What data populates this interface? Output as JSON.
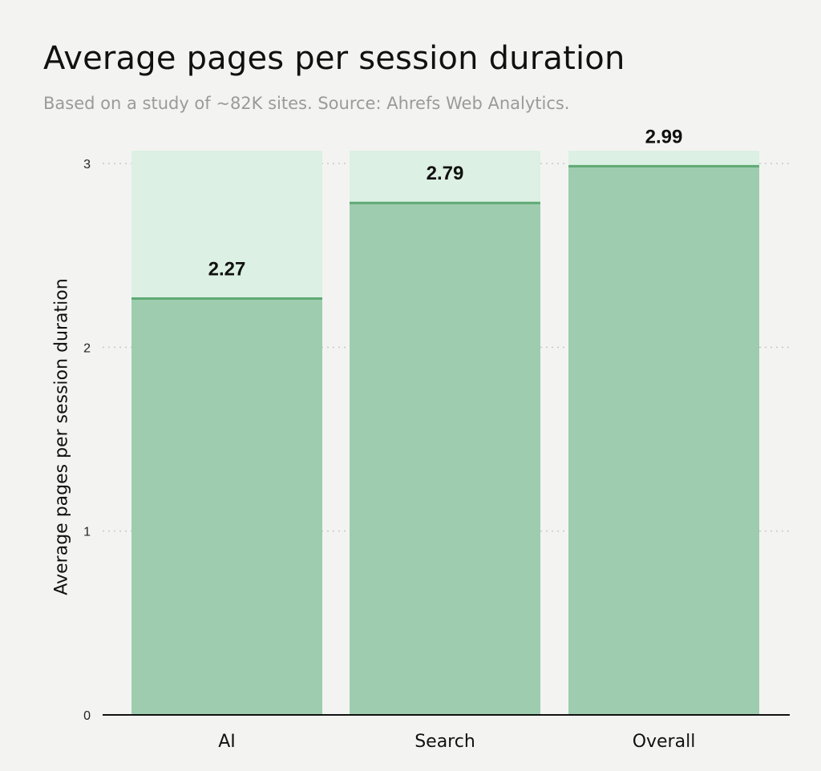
{
  "chart_data": {
    "type": "bar",
    "title": "Average pages per session duration",
    "subtitle": "Based on a study of ~82K sites. Source: Ahrefs Web Analytics.",
    "xlabel": "",
    "ylabel": "Average pages per session duration",
    "categories": [
      "AI",
      "Search",
      "Overall"
    ],
    "values": [
      2.27,
      2.79,
      2.99
    ],
    "value_labels": [
      "2.27",
      "2.79",
      "2.99"
    ],
    "yticks": [
      0,
      1,
      2,
      3
    ],
    "ytick_labels": [
      "0",
      "1",
      "2",
      "3"
    ],
    "ylim": [
      0,
      3.07
    ],
    "grid": true,
    "colors": {
      "bar": "#9dcdae",
      "bar_background": "#dcf0e3",
      "bar_top_line": "#5faa74",
      "axis": "#111111",
      "grid": "#c8c8c8",
      "background": "#f3f4f2"
    }
  }
}
